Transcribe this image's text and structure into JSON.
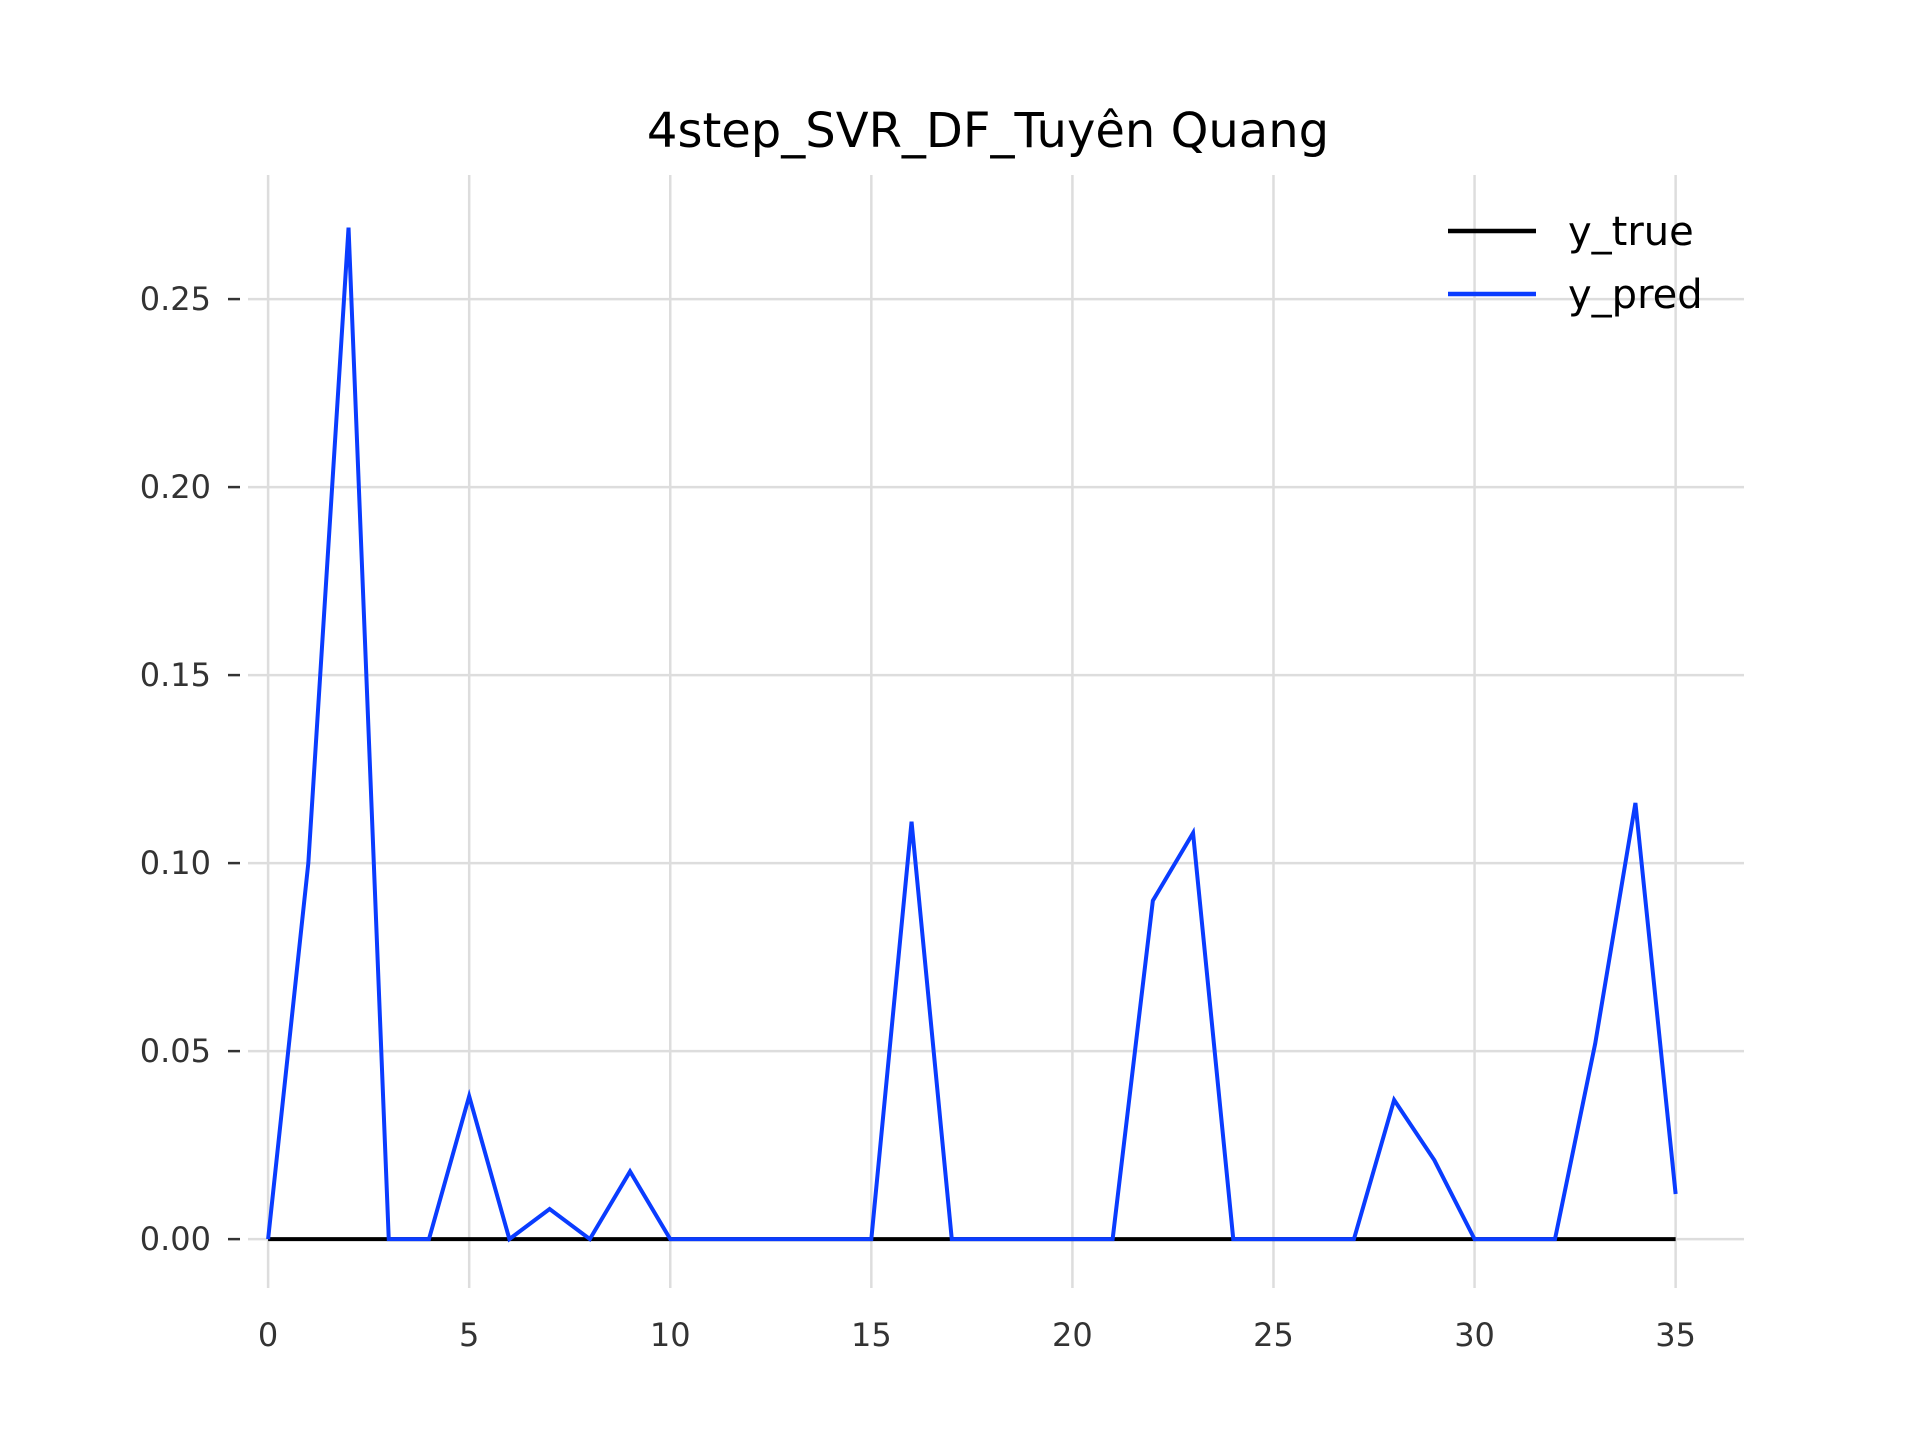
{
  "chart_data": {
    "type": "line",
    "title": "4step_SVR_DF_Tuyên Quang",
    "xlabel": "",
    "ylabel": "",
    "x": [
      0,
      1,
      2,
      3,
      4,
      5,
      6,
      7,
      8,
      9,
      10,
      11,
      12,
      13,
      14,
      15,
      16,
      17,
      18,
      19,
      20,
      21,
      22,
      23,
      24,
      25,
      26,
      27,
      28,
      29,
      30,
      31,
      32,
      33,
      34,
      35
    ],
    "xlim": [
      -0.5,
      36.7
    ],
    "ylim": [
      -0.013,
      0.283
    ],
    "xticks": [
      0,
      5,
      10,
      15,
      20,
      25,
      30,
      35
    ],
    "xtick_labels": [
      "0",
      "5",
      "10",
      "15",
      "20",
      "25",
      "30",
      "35"
    ],
    "yticks": [
      0.0,
      0.05,
      0.1,
      0.15,
      0.2,
      0.25
    ],
    "ytick_labels": [
      "0.00",
      "0.05",
      "0.10",
      "0.15",
      "0.20",
      "0.25"
    ],
    "grid": true,
    "legend_position": "top-right",
    "series": [
      {
        "name": "y_true",
        "color": "#000000",
        "values": [
          0,
          0,
          0,
          0,
          0,
          0,
          0,
          0,
          0,
          0,
          0,
          0,
          0,
          0,
          0,
          0,
          0,
          0,
          0,
          0,
          0,
          0,
          0,
          0,
          0,
          0,
          0,
          0,
          0,
          0,
          0,
          0,
          0,
          0,
          0,
          0
        ]
      },
      {
        "name": "y_pred",
        "color": "#0a3cff",
        "values": [
          0,
          0.1,
          0.269,
          0,
          0,
          0.038,
          0,
          0.008,
          0,
          0.018,
          0,
          0,
          0,
          0,
          0,
          0,
          0.111,
          0,
          0,
          0,
          0,
          0,
          0.09,
          0.108,
          0,
          0,
          0,
          0,
          0.037,
          0.021,
          0,
          0,
          0,
          0.052,
          0.116,
          0.012
        ]
      }
    ]
  }
}
